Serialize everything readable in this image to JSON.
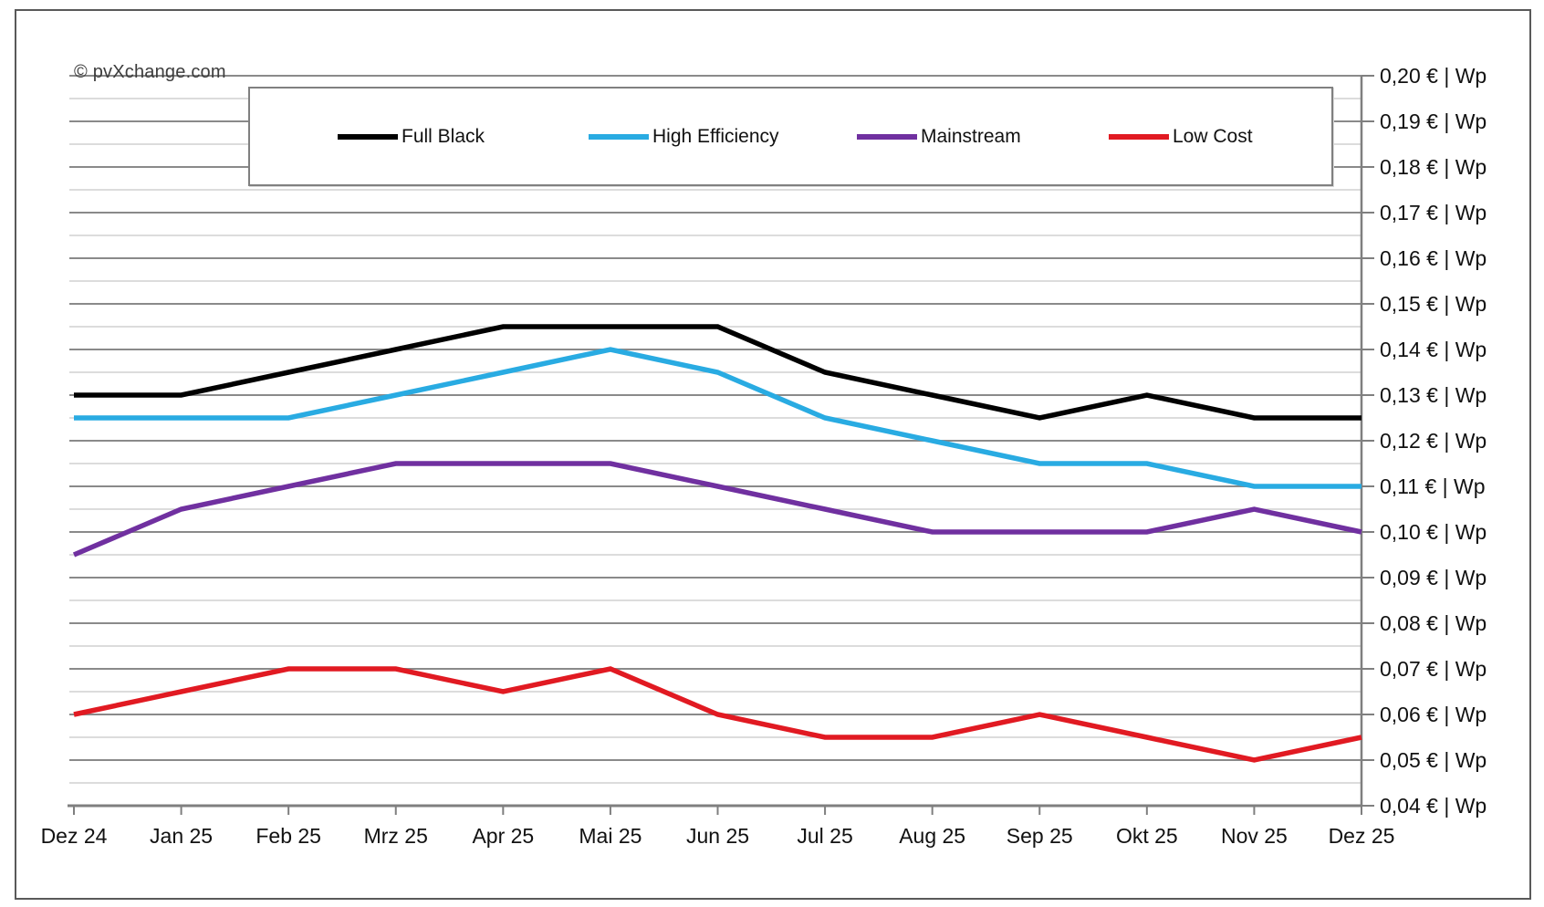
{
  "watermark": "© pvXchange.com",
  "chart_data": {
    "type": "line",
    "title": "",
    "xlabel": "",
    "ylabel": "€ | Wp",
    "grid": "on",
    "legend_position": "top",
    "categories": [
      "Dez 24",
      "Jan 25",
      "Feb 25",
      "Mrz 25",
      "Apr 25",
      "Mai 25",
      "Jun 25",
      "Jul 25",
      "Aug 25",
      "Sep 25",
      "Okt 25",
      "Nov 25",
      "Dez 25"
    ],
    "series": [
      {
        "name": "Full Black",
        "color": "#000000",
        "values": [
          0.13,
          0.13,
          0.135,
          0.14,
          0.145,
          0.145,
          0.145,
          0.135,
          0.13,
          0.125,
          0.13,
          0.125,
          0.125
        ]
      },
      {
        "name": "High Efficiency",
        "color": "#29abe2",
        "values": [
          0.125,
          0.125,
          0.125,
          0.13,
          0.135,
          0.14,
          0.135,
          0.125,
          0.12,
          0.115,
          0.115,
          0.11,
          0.11
        ]
      },
      {
        "name": "Mainstream",
        "color": "#7030a0",
        "values": [
          0.095,
          0.105,
          0.11,
          0.115,
          0.115,
          0.115,
          0.11,
          0.105,
          0.1,
          0.1,
          0.1,
          0.105,
          0.1
        ]
      },
      {
        "name": "Low Cost",
        "color": "#e11a22",
        "values": [
          0.06,
          0.065,
          0.07,
          0.07,
          0.065,
          0.07,
          0.06,
          0.055,
          0.055,
          0.06,
          0.055,
          0.05,
          0.055
        ]
      }
    ],
    "y_axis": {
      "min": 0.04,
      "max": 0.2,
      "major_step": 0.01,
      "minor_step": 0.005,
      "side": "right",
      "labels": [
        "0,04 € | Wp",
        "0,05 € | Wp",
        "0,06 € | Wp",
        "0,07 € | Wp",
        "0,08 € | Wp",
        "0,09 € | Wp",
        "0,10 € | Wp",
        "0,11 € | Wp",
        "0,12 € | Wp",
        "0,13 € | Wp",
        "0,14 € | Wp",
        "0,15 € | Wp",
        "0,16 € | Wp",
        "0,17 € | Wp",
        "0,18 € | Wp",
        "0,19 € | Wp",
        "0,20 € | Wp"
      ]
    },
    "style": {
      "major_grid_color": "#8a8a8a",
      "minor_grid_color": "#c8c8c8",
      "axis_color": "#7f7f7f"
    }
  }
}
